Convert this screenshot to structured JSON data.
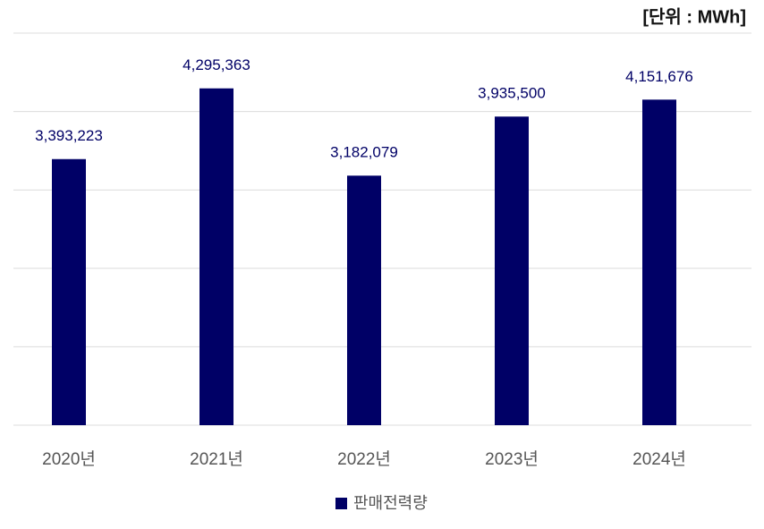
{
  "chart_data": {
    "type": "bar",
    "unit_label": "[단위 : MWh]",
    "categories": [
      "2020년",
      "2021년",
      "2022년",
      "2023년",
      "2024년"
    ],
    "series": [
      {
        "name": "판매전력량",
        "color": "#000066",
        "values": [
          3393223,
          4295363,
          3182079,
          3935500,
          4151676
        ],
        "value_labels": [
          "3,393,223",
          "4,295,363",
          "3,182,079",
          "3,935,500",
          "4,151,676"
        ]
      }
    ],
    "ylim": [
      0,
      5000000
    ],
    "yticks": [
      0,
      1000000,
      2000000,
      3000000,
      4000000,
      5000000
    ],
    "grid": true
  }
}
